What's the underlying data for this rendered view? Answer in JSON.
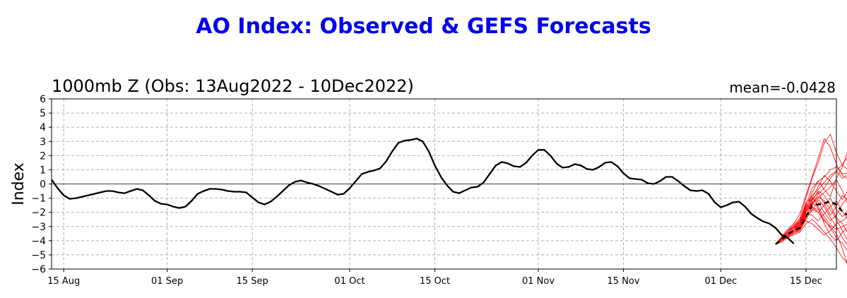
{
  "title": "AO Index: Observed & GEFS Forecasts",
  "subtitle_left": "1000mb Z (Obs: 13Aug2022 - 10Dec2022)",
  "subtitle_right": "mean=-0.0428",
  "colors": {
    "title": "#0000ee",
    "observed": "#000000",
    "members": "#ff0000",
    "ens_mean": "#000000",
    "grid": "#b0b0b0"
  },
  "chart_data": {
    "type": "line",
    "ylabel": "Index",
    "xlabel": "",
    "ylim": [
      -6,
      6
    ],
    "yticks": [
      -6,
      -5,
      -4,
      -3,
      -2,
      -1,
      0,
      1,
      2,
      3,
      4,
      5,
      6
    ],
    "xlim": [
      "2022-08-13",
      "2022-12-20"
    ],
    "xticks": [
      {
        "date": "2022-08-15",
        "label": "15 Aug"
      },
      {
        "date": "2022-09-01",
        "label": "01 Sep"
      },
      {
        "date": "2022-09-15",
        "label": "15 Sep"
      },
      {
        "date": "2022-10-01",
        "label": "01 Oct"
      },
      {
        "date": "2022-10-15",
        "label": "15 Oct"
      },
      {
        "date": "2022-11-01",
        "label": "01 Nov"
      },
      {
        "date": "2022-11-15",
        "label": "15 Nov"
      },
      {
        "date": "2022-12-01",
        "label": "01 Dec"
      },
      {
        "date": "2022-12-15",
        "label": "15 Dec"
      }
    ],
    "grid": true,
    "observed": {
      "start_date": "2022-08-13",
      "values": [
        0.3,
        -0.3,
        -0.8,
        -1.05,
        -1.0,
        -0.9,
        -0.8,
        -0.7,
        -0.6,
        -0.5,
        -0.5,
        -0.6,
        -0.65,
        -0.5,
        -0.35,
        -0.45,
        -0.8,
        -1.2,
        -1.4,
        -1.45,
        -1.6,
        -1.7,
        -1.6,
        -1.2,
        -0.7,
        -0.5,
        -0.35,
        -0.35,
        -0.4,
        -0.5,
        -0.55,
        -0.55,
        -0.6,
        -0.95,
        -1.3,
        -1.45,
        -1.25,
        -0.9,
        -0.5,
        -0.1,
        0.15,
        0.25,
        0.1,
        0.0,
        -0.15,
        -0.35,
        -0.55,
        -0.75,
        -0.7,
        -0.3,
        0.2,
        0.7,
        0.85,
        0.95,
        1.1,
        1.6,
        2.3,
        2.9,
        3.05,
        3.1,
        3.2,
        3.0,
        2.3,
        1.3,
        0.5,
        -0.1,
        -0.55,
        -0.65,
        -0.45,
        -0.25,
        -0.2,
        0.1,
        0.7,
        1.3,
        1.55,
        1.45,
        1.25,
        1.2,
        1.5,
        2.0,
        2.4,
        2.4,
        2.0,
        1.45,
        1.15,
        1.2,
        1.4,
        1.3,
        1.05,
        1.0,
        1.2,
        1.5,
        1.55,
        1.25,
        0.75,
        0.4,
        0.35,
        0.3,
        0.05,
        0.0,
        0.2,
        0.5,
        0.5,
        0.2,
        -0.15,
        -0.45,
        -0.5,
        -0.45,
        -0.7,
        -1.3,
        -1.65,
        -1.5,
        -1.3,
        -1.25,
        -1.6,
        -2.1,
        -2.4,
        -2.65,
        -2.8,
        -3.1,
        -3.6,
        -3.8,
        -4.2
      ]
    },
    "ensemble_mean": {
      "start_date": "2022-12-10",
      "values": [
        -4.25,
        -3.9,
        -3.5,
        -3.3,
        -3.1,
        -2.3,
        -1.5,
        -1.45,
        -1.35,
        -1.25,
        -1.45,
        -1.95,
        -2.25
      ]
    },
    "ensemble_members": [
      {
        "start_date": "2022-12-10",
        "values": [
          -4.25,
          -3.7,
          -3.2,
          -2.8,
          -2.1,
          -0.8,
          0.5,
          1.8,
          3.2,
          2.6,
          1.4,
          0.6,
          0.3
        ]
      },
      {
        "start_date": "2022-12-10",
        "values": [
          -4.25,
          -3.8,
          -3.3,
          -2.9,
          -2.4,
          -1.0,
          0.4,
          1.5,
          2.9,
          3.5,
          2.2,
          1.3,
          1.0
        ]
      },
      {
        "start_date": "2022-12-10",
        "values": [
          -4.25,
          -4.0,
          -3.8,
          -3.5,
          -3.3,
          -2.5,
          -1.8,
          -2.0,
          -2.6,
          -3.0,
          -3.5,
          -4.6,
          -5.9
        ]
      },
      {
        "start_date": "2022-12-10",
        "values": [
          -4.25,
          -4.1,
          -3.7,
          -3.6,
          -3.4,
          -2.8,
          -2.5,
          -2.9,
          -3.4,
          -3.9,
          -4.5,
          -5.2,
          -5.7
        ]
      },
      {
        "start_date": "2022-12-10",
        "values": [
          -4.25,
          -3.9,
          -3.4,
          -3.1,
          -2.9,
          -1.8,
          -0.6,
          0.2,
          0.5,
          1.0,
          1.2,
          0.7,
          0.8
        ]
      },
      {
        "start_date": "2022-12-10",
        "values": [
          -4.25,
          -3.9,
          -3.5,
          -3.2,
          -2.7,
          -1.5,
          -0.3,
          0.2,
          -0.4,
          -0.9,
          0.4,
          1.2,
          2.5
        ]
      },
      {
        "start_date": "2022-12-10",
        "values": [
          -4.25,
          -4.0,
          -3.6,
          -3.5,
          -3.2,
          -2.3,
          -1.2,
          -0.5,
          -0.8,
          -1.5,
          -2.4,
          -2.8,
          -3.6
        ]
      },
      {
        "start_date": "2022-12-10",
        "values": [
          -4.25,
          -3.8,
          -3.3,
          -3.0,
          -2.5,
          -1.6,
          -1.0,
          -1.3,
          -2.0,
          -2.6,
          -2.2,
          -1.4,
          -0.9
        ]
      },
      {
        "start_date": "2022-12-10",
        "values": [
          -4.25,
          -4.0,
          -3.7,
          -3.3,
          -3.0,
          -2.6,
          -2.8,
          -3.2,
          -3.6,
          -3.3,
          -2.8,
          -2.6,
          -2.2
        ]
      },
      {
        "start_date": "2022-12-10",
        "values": [
          -4.25,
          -3.9,
          -3.5,
          -3.2,
          -2.9,
          -1.9,
          -1.4,
          -1.0,
          -0.6,
          -0.2,
          0.3,
          -0.5,
          -1.5
        ]
      },
      {
        "start_date": "2022-12-10",
        "values": [
          -4.25,
          -3.8,
          -3.3,
          -3.0,
          -2.6,
          -1.3,
          -0.9,
          -1.6,
          -2.3,
          -2.9,
          -3.2,
          -3.0,
          -2.8
        ]
      },
      {
        "start_date": "2022-12-10",
        "values": [
          -4.25,
          -3.9,
          -3.6,
          -3.3,
          -3.1,
          -2.0,
          -1.3,
          -0.9,
          -1.2,
          -1.8,
          -2.5,
          -3.3,
          -4.1
        ]
      },
      {
        "start_date": "2022-12-10",
        "values": [
          -4.25,
          -4.0,
          -3.6,
          -3.4,
          -3.0,
          -2.2,
          -1.7,
          -1.8,
          -2.5,
          -3.1,
          -3.8,
          -4.2,
          -4.8
        ]
      },
      {
        "start_date": "2022-12-10",
        "values": [
          -4.25,
          -3.9,
          -3.4,
          -3.1,
          -2.8,
          -1.7,
          -0.8,
          -0.4,
          0.1,
          0.6,
          0.9,
          0.4,
          0.7
        ]
      },
      {
        "start_date": "2022-12-10",
        "values": [
          -4.25,
          -3.8,
          -3.4,
          -3.0,
          -2.7,
          -1.4,
          -1.6,
          -2.0,
          -1.5,
          -1.0,
          -1.8,
          -2.3,
          -1.8
        ]
      },
      {
        "start_date": "2022-12-10",
        "values": [
          -4.25,
          -3.9,
          -3.5,
          -3.3,
          -2.9,
          -2.1,
          -2.2,
          -2.6,
          -2.1,
          -1.6,
          -1.2,
          -1.9,
          -2.6
        ]
      },
      {
        "start_date": "2022-12-10",
        "values": [
          -4.25,
          -4.0,
          -3.7,
          -3.4,
          -3.2,
          -2.4,
          -1.5,
          -0.7,
          -0.3,
          0.4,
          0.9,
          1.4,
          2.0
        ]
      },
      {
        "start_date": "2022-12-10",
        "values": [
          -4.25,
          -3.9,
          -3.6,
          -3.2,
          -2.8,
          -1.9,
          -1.1,
          -0.6,
          -1.4,
          -2.2,
          -1.6,
          -0.8,
          -1.2
        ]
      },
      {
        "start_date": "2022-12-10",
        "values": [
          -4.25,
          -3.8,
          -3.4,
          -3.1,
          -2.6,
          -1.7,
          -1.3,
          -1.7,
          -2.8,
          -3.6,
          -4.0,
          -3.4,
          -3.0
        ]
      },
      {
        "start_date": "2022-12-10",
        "values": [
          -4.25,
          -3.9,
          -3.5,
          -3.2,
          -2.9,
          -2.0,
          -1.0,
          -0.2,
          0.6,
          0.2,
          -0.5,
          -1.1,
          -0.4
        ]
      },
      {
        "start_date": "2022-12-10",
        "values": [
          -4.25,
          -4.0,
          -3.6,
          -3.3,
          -3.0,
          -2.3,
          -1.9,
          -1.1,
          -1.6,
          -2.4,
          -3.0,
          -3.8,
          -4.4
        ]
      }
    ]
  }
}
